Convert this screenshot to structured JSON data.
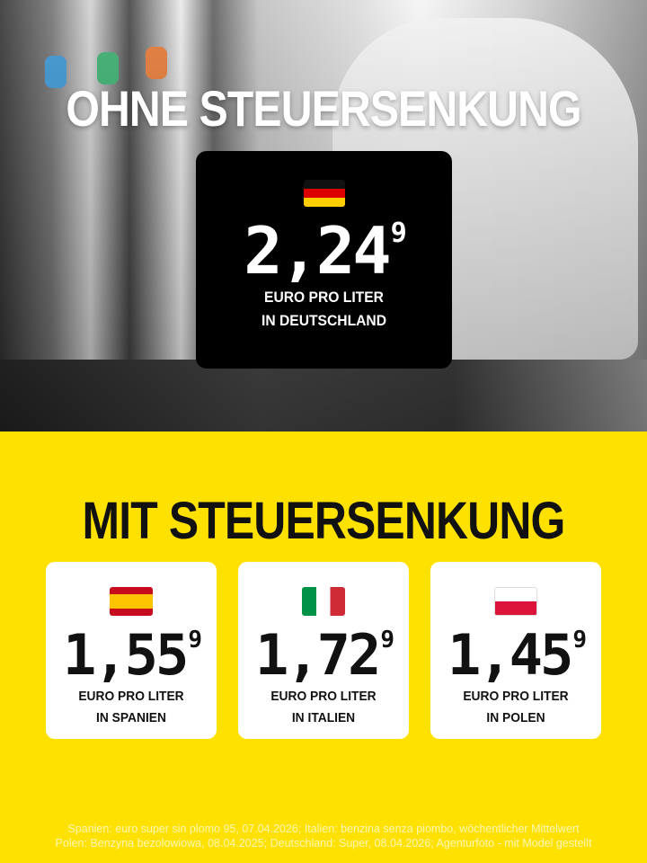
{
  "top": {
    "title": "OHNE STEUERSENKUNG",
    "germany": {
      "flag": "flag-germany",
      "price": "2,24",
      "price_decimal": "9",
      "unit": "EURO PRO LITER",
      "country": "IN DEUTSCHLAND"
    }
  },
  "bottom": {
    "title": "MIT STEUERSENKUNG",
    "cards": [
      {
        "flag": "flag-spain",
        "price": "1,55",
        "price_decimal": "9",
        "unit": "EURO PRO LITER",
        "country": "IN SPANIEN"
      },
      {
        "flag": "flag-italy",
        "price": "1,72",
        "price_decimal": "9",
        "unit": "EURO PRO LITER",
        "country": "IN ITALIEN"
      },
      {
        "flag": "flag-poland",
        "price": "1,45",
        "price_decimal": "9",
        "unit": "EURO PRO LITER",
        "country": "IN POLEN"
      }
    ]
  },
  "footer": {
    "line1": "Spanien: euro super sin plomo 95, 07.04.2026; Italien: benzina senza piombo, wöchentlicher Mittelwert",
    "line2": "Polen: Benzyna bezolowiowa, 08.04.2025; Deutschland: Super, 08.04.2026; Agenturfoto - mit Model gestellt"
  },
  "colors": {
    "background": "#ffe100",
    "box": "#000000",
    "card": "#ffffff"
  }
}
